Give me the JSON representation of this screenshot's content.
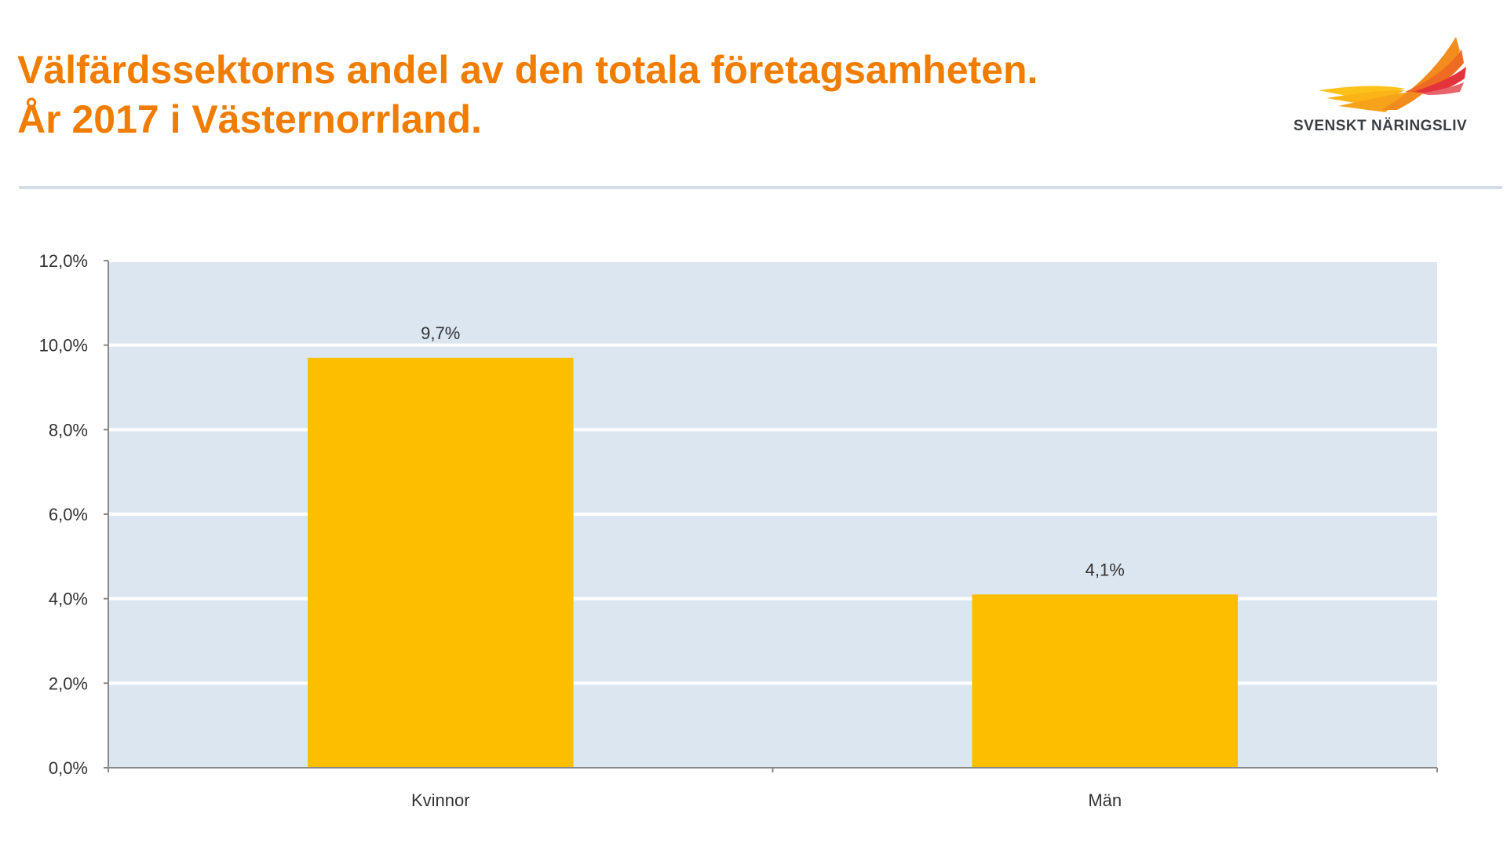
{
  "title": {
    "line1": "Välfärdssektorns andel av den totala företagsamheten.",
    "line2": "År 2017 i Västernorrland."
  },
  "logo": {
    "text": "SVENSKT NÄRINGSLIV"
  },
  "colors": {
    "title": "#f07d00",
    "bar": "#fdbe00",
    "plot_bg": "#dce6f1",
    "separator": "#d3dde8"
  },
  "chart_data": {
    "type": "bar",
    "categories": [
      "Kvinnor",
      "Män"
    ],
    "values": [
      9.7,
      4.1
    ],
    "data_labels": [
      "9,7%",
      "4,1%"
    ],
    "ylim": [
      0,
      12
    ],
    "yticks": [
      0,
      2,
      4,
      6,
      8,
      10,
      12
    ],
    "ytick_labels": [
      "0,0%",
      "2,0%",
      "4,0%",
      "6,0%",
      "8,0%",
      "10,0%",
      "12,0%"
    ],
    "grid": true,
    "legend": "none"
  }
}
